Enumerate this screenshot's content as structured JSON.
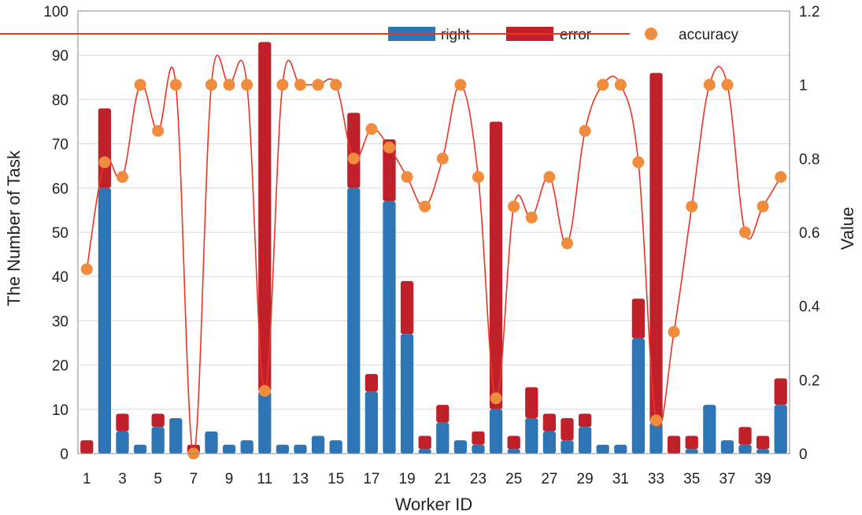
{
  "chart_data": {
    "type": "bar",
    "stacked": true,
    "categories": [
      "1",
      "2",
      "3",
      "4",
      "5",
      "6",
      "7",
      "8",
      "9",
      "10",
      "11",
      "12",
      "13",
      "14",
      "15",
      "16",
      "17",
      "18",
      "19",
      "20",
      "21",
      "22",
      "23",
      "24",
      "25",
      "26",
      "27",
      "28",
      "29",
      "30",
      "31",
      "32",
      "33",
      "34",
      "35",
      "36",
      "37",
      "38",
      "39",
      "40"
    ],
    "x_tick_labels": [
      "1",
      "3",
      "5",
      "7",
      "9",
      "11",
      "13",
      "15",
      "17",
      "19",
      "21",
      "23",
      "25",
      "27",
      "29",
      "31",
      "33",
      "35",
      "37",
      "39"
    ],
    "series": [
      {
        "name": "right",
        "kind": "bar",
        "axis": "left",
        "color": "#2e75b6",
        "values": [
          0,
          60,
          5,
          2,
          6,
          8,
          0,
          5,
          2,
          3,
          14,
          2,
          2,
          4,
          3,
          60,
          14,
          57,
          27,
          1,
          7,
          3,
          2,
          10,
          1,
          8,
          5,
          3,
          6,
          2,
          2,
          26,
          7,
          0,
          1,
          11,
          3,
          2,
          1,
          11
        ]
      },
      {
        "name": "error",
        "kind": "bar",
        "axis": "left",
        "color": "#c0202a",
        "values": [
          3,
          18,
          4,
          0,
          3,
          0,
          2,
          0,
          0,
          0,
          79,
          0,
          0,
          0,
          0,
          17,
          4,
          14,
          12,
          3,
          4,
          0,
          3,
          65,
          3,
          7,
          4,
          5,
          3,
          0,
          0,
          9,
          79,
          4,
          3,
          0,
          0,
          4,
          3,
          6
        ]
      },
      {
        "name": "accuracy",
        "kind": "line",
        "axis": "right",
        "color": "#ee3322",
        "marker_color": "#f08c3c",
        "values": [
          0.5,
          0.79,
          0.75,
          1,
          0.875,
          1,
          0,
          1,
          1,
          1,
          0.17,
          1,
          1,
          1,
          1,
          0.8,
          0.88,
          0.83,
          0.75,
          0.67,
          0.8,
          1,
          0.75,
          0.15,
          0.67,
          0.64,
          0.75,
          0.57,
          0.875,
          1,
          1,
          0.79,
          0.09,
          0.33,
          0.67,
          1,
          1,
          0.6,
          0.67,
          0.75
        ]
      }
    ],
    "xlabel": "Worker ID",
    "ylabel": "The Number of Task",
    "y2label": "Value",
    "ylim": [
      0,
      100
    ],
    "y_ticks": [
      0,
      10,
      20,
      30,
      40,
      50,
      60,
      70,
      80,
      90,
      100
    ],
    "y2lim": [
      0,
      1.2
    ],
    "y2_ticks": [
      0,
      0.2,
      0.4,
      0.6,
      0.8,
      1,
      1.2
    ],
    "y2_tick_labels": [
      "0",
      "0.2",
      "0.4",
      "0.6",
      "0.8",
      "1",
      "1.2"
    ],
    "grid": true,
    "legend_position": "top-right"
  }
}
